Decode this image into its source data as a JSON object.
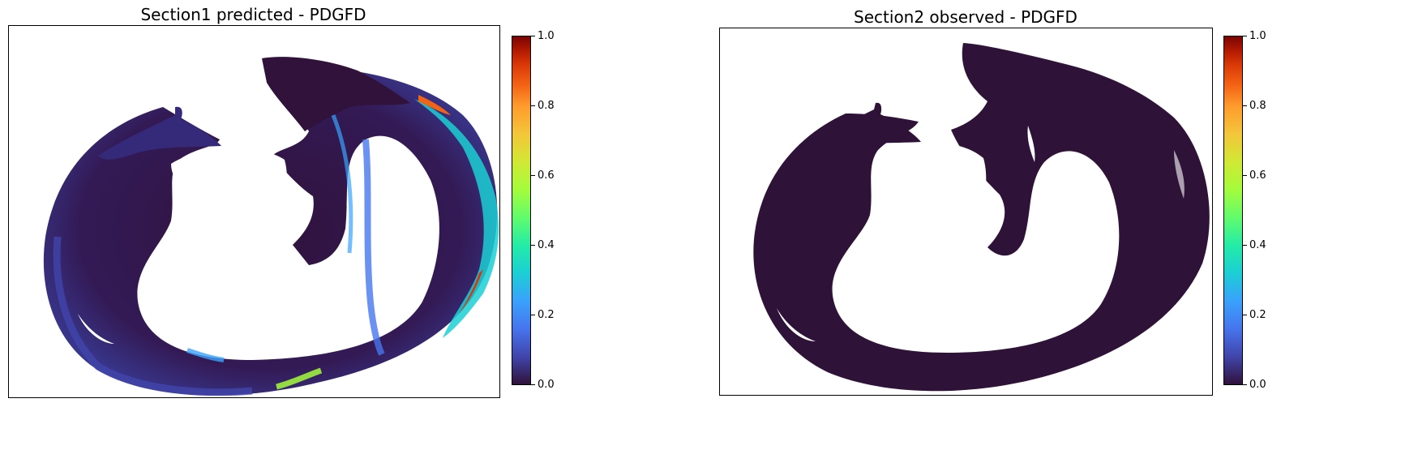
{
  "chart_data": [
    {
      "type": "heatmap",
      "title": "Section1 predicted - PDGFD",
      "colormap": "turbo",
      "colorbar": {
        "range": [
          0.0,
          1.0
        ],
        "ticks": [
          "0.0",
          "0.2",
          "0.4",
          "0.6",
          "0.8",
          "1.0"
        ]
      },
      "xticks": [],
      "yticks": [],
      "xlabel": "",
      "ylabel": ""
    },
    {
      "type": "heatmap",
      "title": "Section2 observed - PDGFD",
      "colormap": "turbo",
      "colorbar": {
        "range": [
          0.0,
          1.0
        ],
        "ticks": [
          "0.0",
          "0.2",
          "0.4",
          "0.6",
          "0.8",
          "1.0"
        ]
      },
      "xticks": [],
      "yticks": [],
      "xlabel": "",
      "ylabel": ""
    }
  ]
}
